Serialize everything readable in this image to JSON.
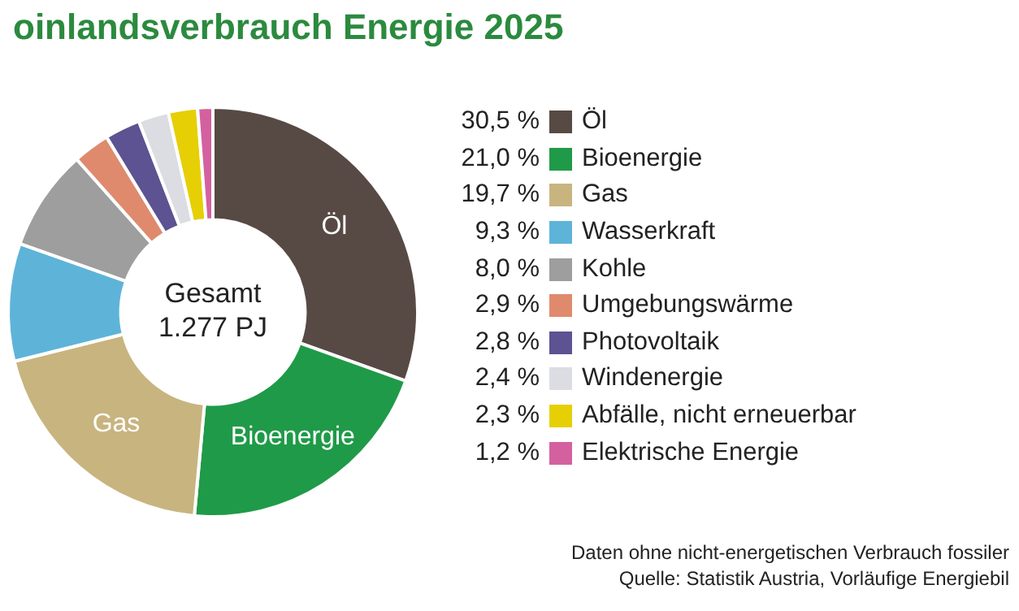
{
  "chart_data": {
    "type": "donut",
    "title": "oinlandsverbrauch Energie 2025",
    "categories": [
      "Öl",
      "Bioenergie",
      "Gas",
      "Wasserkraft",
      "Kohle",
      "Umgebungswärme",
      "Photovoltaik",
      "Windenergie",
      "Abfälle, nicht erneuerbar",
      "Elektrische Energie"
    ],
    "values": [
      30.5,
      21.0,
      19.7,
      9.3,
      8.0,
      2.9,
      2.8,
      2.4,
      2.3,
      1.2
    ],
    "value_labels": [
      "30,5 %",
      "21,0 %",
      "19,7 %",
      "9,3 %",
      "8,0 %",
      "2,9 %",
      "2,8 %",
      "2,4 %",
      "2,3 %",
      "1,2 %"
    ],
    "colors": [
      "#574a44",
      "#1f9a48",
      "#c8b47f",
      "#5db4d8",
      "#9e9e9e",
      "#df8a6d",
      "#5d5292",
      "#dcdde2",
      "#e6cf05",
      "#d4619f"
    ],
    "legend": "right",
    "annotations": [
      "Gesamt\n1.277 PJ",
      "Daten ohne nicht-energetischen Verbrauch fossiler",
      "Quelle: Statistik Austria, Vorläufige Energiebil"
    ]
  }
}
